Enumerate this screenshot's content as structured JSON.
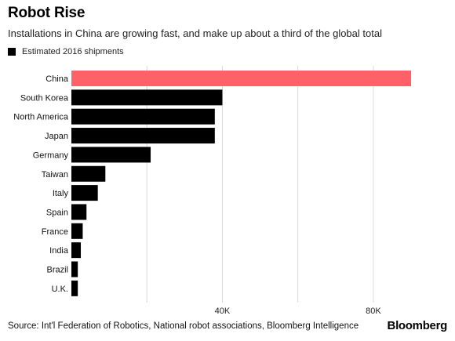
{
  "chart_data": {
    "type": "bar",
    "orientation": "horizontal",
    "title": "Robot Rise",
    "subtitle": "Installations in China are growing fast, and make up about a third of the global total",
    "series": [
      {
        "name": "Estimated 2016 shipments",
        "color": "#000000"
      }
    ],
    "categories": [
      "China",
      "South Korea",
      "North America",
      "Japan",
      "Germany",
      "Taiwan",
      "Italy",
      "Spain",
      "France",
      "India",
      "Brazil",
      "U.K."
    ],
    "values": [
      90000,
      40000,
      38000,
      38000,
      21000,
      9000,
      7000,
      4000,
      3000,
      2500,
      1700,
      1700
    ],
    "highlight": {
      "category": "China",
      "color": "#ff6169"
    },
    "xlim": [
      0,
      90000
    ],
    "xticks": [
      20000,
      40000,
      60000,
      80000
    ],
    "xtick_labels": [
      "",
      "40K",
      "",
      "80K"
    ],
    "grid": "vertical",
    "legend_position": "top-left",
    "source": "Source: Int'l Federation of Robotics, National robot associations, Bloomberg Intelligence",
    "brand": "Bloomberg"
  }
}
